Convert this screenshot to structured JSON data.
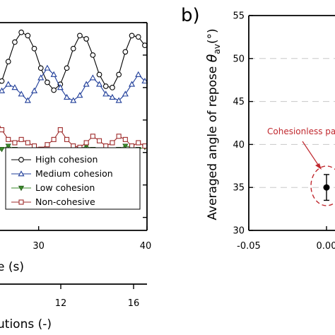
{
  "panel_b_label": "b)",
  "chart_data": [
    {
      "type": "line",
      "panel": "a",
      "xlabel": "e (s)",
      "x2label": "utions (-)",
      "xlim": [
        16,
        40
      ],
      "ylim": [
        28,
        60
      ],
      "x_ticks": [
        30,
        40
      ],
      "x2_ticks": [
        12,
        16
      ],
      "legend": [
        "High cohesion",
        "Medium cohesion",
        "Low cohesion",
        "Non-cohesive"
      ],
      "legend_position": "lower-right",
      "series": [
        {
          "name": "High cohesion",
          "marker": "circle-open",
          "color": "#000000",
          "x": [
            17.0,
            17.6,
            18.2,
            18.8,
            19.4,
            20.0,
            20.6,
            21.2,
            21.8,
            22.4,
            23.0,
            23.6,
            24.2,
            24.8,
            25.4,
            26.0,
            26.6,
            27.2,
            27.8,
            28.4,
            29.0,
            29.6,
            30.2,
            30.8,
            31.4,
            32.0,
            32.6,
            33.2,
            33.8,
            34.4,
            35.0,
            35.6,
            36.2,
            36.8,
            37.4,
            38.0,
            38.6,
            39.2,
            39.8
          ],
          "y": [
            56.5,
            57.5,
            55.5,
            53.0,
            50.5,
            49.0,
            49.5,
            52.0,
            55.0,
            57.5,
            58.4,
            57.6,
            55.5,
            52.5,
            50.5,
            49.8,
            51.0,
            54.0,
            57.0,
            58.5,
            58.0,
            56.0,
            53.0,
            50.8,
            49.6,
            50.5,
            53.0,
            56.0,
            58.0,
            57.5,
            55.0,
            52.0,
            50.2,
            50.0,
            52.0,
            55.5,
            58.0,
            57.8,
            56.5
          ]
        },
        {
          "name": "Medium cohesion",
          "marker": "triangle-up-open",
          "color": "#1f3d99",
          "x": [
            17.0,
            17.6,
            18.2,
            18.8,
            19.4,
            20.0,
            20.6,
            21.2,
            21.8,
            22.4,
            23.0,
            23.6,
            24.2,
            24.8,
            25.4,
            26.0,
            26.6,
            27.2,
            27.8,
            28.4,
            29.0,
            29.6,
            30.2,
            30.8,
            31.4,
            32.0,
            32.6,
            33.2,
            33.8,
            34.4,
            35.0,
            35.6,
            36.2,
            36.8,
            37.4,
            38.0,
            38.6,
            39.2,
            39.8
          ],
          "y": [
            49.0,
            50.0,
            50.2,
            49.5,
            48.5,
            48.0,
            48.5,
            50.5,
            52.5,
            54.0,
            53.0,
            51.5,
            49.5,
            48.5,
            48.0,
            48.5,
            49.5,
            50.5,
            50.0,
            49.0,
            48.0,
            49.5,
            51.5,
            53.0,
            52.0,
            50.0,
            48.5,
            48.0,
            48.8,
            50.5,
            51.5,
            50.5,
            49.0,
            48.5,
            48.0,
            49.0,
            50.5,
            52.0,
            51.0
          ]
        },
        {
          "name": "Low cohesion",
          "marker": "triangle-down-filled",
          "color": "#3a8a2a",
          "x": [
            17.0,
            17.6,
            18.2,
            18.8,
            19.4,
            20.0,
            20.6,
            21.2,
            21.8,
            22.4,
            23.0,
            23.6,
            24.2,
            24.8,
            25.4,
            26.0,
            26.6,
            27.2,
            27.8,
            28.4,
            29.0,
            29.6,
            30.2,
            30.8,
            31.4,
            32.0,
            32.6,
            33.2,
            33.8,
            34.4,
            35.0,
            35.6,
            36.2,
            36.8,
            37.4,
            38.0,
            38.6,
            39.2,
            39.8
          ],
          "y": [
            40.0,
            39.5,
            39.2,
            39.0,
            39.5,
            40.5,
            39.8,
            39.2,
            39.0,
            39.5,
            40.2,
            41.0,
            40.5,
            39.8,
            39.5,
            40.0,
            40.5,
            41.0,
            40.5,
            40.0,
            39.8,
            40.2,
            40.5,
            40.0,
            39.5,
            39.2,
            39.5,
            40.0,
            40.5,
            41.0,
            40.5,
            40.0,
            39.8,
            40.0,
            40.5,
            41.0,
            40.8,
            40.5,
            40.8
          ]
        },
        {
          "name": "Non-cohesive",
          "marker": "square-open",
          "color": "#9e2a2a",
          "x": [
            17.0,
            17.6,
            18.2,
            18.8,
            19.4,
            20.0,
            20.6,
            21.2,
            21.8,
            22.4,
            23.0,
            23.6,
            24.2,
            24.8,
            25.4,
            26.0,
            26.6,
            27.2,
            27.8,
            28.4,
            29.0,
            29.6,
            30.2,
            30.8,
            31.4,
            32.0,
            32.6,
            33.2,
            33.8,
            34.4,
            35.0,
            35.6,
            36.2,
            36.8,
            37.4,
            38.0,
            38.6,
            39.2,
            39.8
          ],
          "y": [
            40.2,
            40.8,
            41.5,
            42.5,
            42.8,
            42.2,
            41.0,
            40.5,
            40.5,
            41.0,
            41.5,
            41.0,
            40.5,
            41.0,
            43.0,
            45.5,
            43.5,
            42.0,
            41.5,
            42.0,
            41.5,
            41.0,
            40.5,
            41.2,
            42.0,
            43.5,
            42.0,
            41.0,
            40.8,
            41.5,
            42.5,
            41.8,
            41.0,
            41.5,
            42.5,
            42.0,
            41.0,
            41.5,
            41.0
          ]
        }
      ]
    },
    {
      "type": "scatter",
      "panel": "b",
      "ylabel_main": "Averaged angle of repose ",
      "ylabel_theta": "θ",
      "ylabel_sub": "av",
      "ylabel_unit": "(°)",
      "ylim": [
        30,
        55
      ],
      "y_ticks": [
        30,
        35,
        40,
        45,
        50,
        55
      ],
      "xlim": [
        -0.05,
        0.01
      ],
      "x_tick_labels": [
        "-0.05",
        "0.00"
      ],
      "grid": "horizontal-dashed",
      "points": [
        {
          "x": 0.0,
          "y": 35.0,
          "y_error": 1.5
        }
      ],
      "annotation": "Cohesionless part"
    }
  ]
}
